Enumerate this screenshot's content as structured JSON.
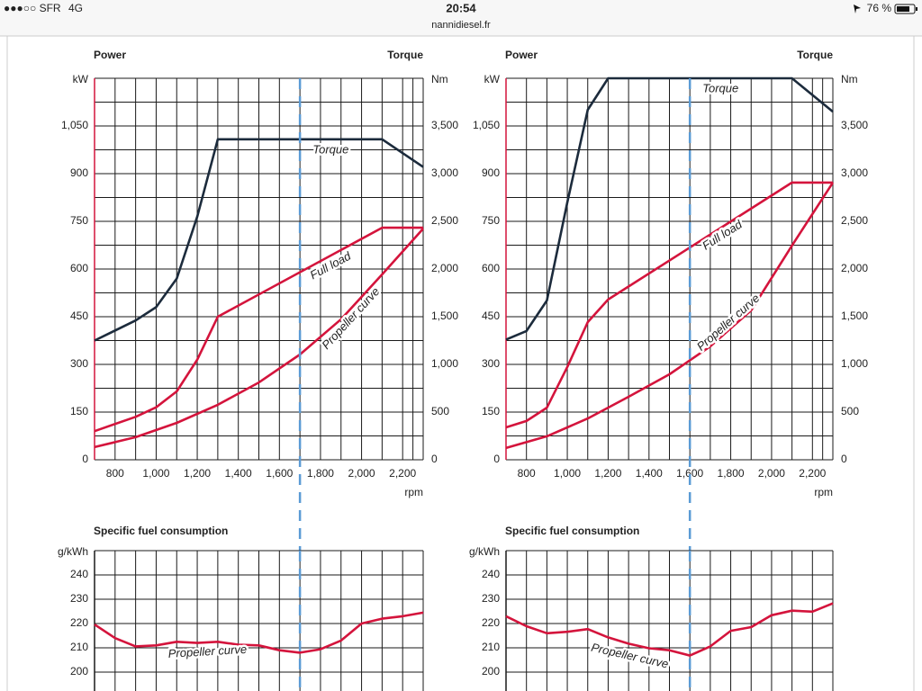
{
  "status_bar": {
    "carrier": "●●●○○ SFR",
    "network": "4G",
    "time": "20:54",
    "battery": "76 %"
  },
  "url": "nannidiesel.fr",
  "chart_data": [
    {
      "type": "line",
      "title": "Power",
      "y2_label": "Torque",
      "y_unit": "kW",
      "y2_unit": "Nm",
      "x_unit": "rpm",
      "xlim": [
        700,
        2300
      ],
      "xticks": [
        800,
        {
          "value": 1000,
          "label": "1,000"
        },
        {
          "value": 1200,
          "label": "1,200"
        },
        {
          "value": 1400,
          "label": "1,400"
        },
        {
          "value": 1600,
          "label": "1,600"
        },
        {
          "value": 1800,
          "label": "1,800"
        },
        {
          "value": 2000,
          "label": "2,000"
        },
        {
          "value": 2200,
          "label": "2,200"
        }
      ],
      "ylim": [
        0,
        1200
      ],
      "yticks": [
        0,
        150,
        300,
        450,
        600,
        750,
        900,
        {
          "value": 1050,
          "label": "1,050"
        }
      ],
      "y2lim": [
        0,
        4000
      ],
      "y2ticks": [
        0,
        500,
        {
          "value": 1000,
          "label": "1,000"
        },
        {
          "value": 1500,
          "label": "1,500"
        },
        {
          "value": 2000,
          "label": "2,000"
        },
        {
          "value": 2500,
          "label": "2,500"
        },
        {
          "value": 3000,
          "label": "3,000"
        },
        {
          "value": 3500,
          "label": "3,500"
        }
      ],
      "minor_grid": true,
      "reference_x": 1700,
      "series": [
        {
          "name": "Torque",
          "color": "#1c2b3c",
          "axis": "y2",
          "x": [
            700,
            900,
            1000,
            1100,
            1200,
            1300,
            2100,
            2300
          ],
          "values": [
            1250,
            1460,
            1600,
            1900,
            2550,
            3360,
            3360,
            3070
          ]
        },
        {
          "name": "Full load",
          "color": "#d4143c",
          "x": [
            700,
            900,
            1000,
            1100,
            1200,
            1300,
            2100,
            2300
          ],
          "values": [
            90,
            135,
            165,
            215,
            315,
            450,
            730,
            730
          ]
        },
        {
          "name": "Propeller curve",
          "color": "#d4143c",
          "x": [
            700,
            900,
            1100,
            1300,
            1500,
            1700,
            1900,
            2100,
            2300
          ],
          "values": [
            40,
            71,
            116,
            173,
            243,
            331,
            442,
            583,
            727
          ]
        }
      ]
    },
    {
      "type": "line",
      "title": "Power",
      "y2_label": "Torque",
      "y_unit": "kW",
      "y2_unit": "Nm",
      "x_unit": "rpm",
      "xlim": [
        700,
        2300
      ],
      "xticks": [
        800,
        {
          "value": 1000,
          "label": "1,000"
        },
        {
          "value": 1200,
          "label": "1,200"
        },
        {
          "value": 1400,
          "label": "1,400"
        },
        {
          "value": 1600,
          "label": "1,600"
        },
        {
          "value": 1800,
          "label": "1,800"
        },
        {
          "value": 2000,
          "label": "2,000"
        },
        {
          "value": 2200,
          "label": "2,200"
        }
      ],
      "ylim": [
        0,
        1200
      ],
      "yticks": [
        0,
        150,
        300,
        450,
        600,
        750,
        900,
        {
          "value": 1050,
          "label": "1,050"
        }
      ],
      "y2lim": [
        0,
        4000
      ],
      "y2ticks": [
        0,
        500,
        {
          "value": 1000,
          "label": "1,000"
        },
        {
          "value": 1500,
          "label": "1,500"
        },
        {
          "value": 2000,
          "label": "2,000"
        },
        {
          "value": 2500,
          "label": "2,500"
        },
        {
          "value": 3000,
          "label": "3,000"
        },
        {
          "value": 3500,
          "label": "3,500"
        }
      ],
      "minor_grid": true,
      "reference_x": 1600,
      "series": [
        {
          "name": "Torque",
          "color": "#1c2b3c",
          "axis": "y2",
          "x": [
            700,
            800,
            900,
            1000,
            1100,
            1200,
            2100,
            2300
          ],
          "values": [
            1260,
            1350,
            1670,
            2700,
            3670,
            4000,
            4000,
            3650
          ]
        },
        {
          "name": "Full load",
          "color": "#d4143c",
          "x": [
            700,
            800,
            900,
            1000,
            1100,
            1200,
            2100,
            2300
          ],
          "values": [
            102,
            122,
            164,
            292,
            433,
            504,
            872,
            872
          ]
        },
        {
          "name": "Propeller curve",
          "color": "#d4143c",
          "x": [
            700,
            900,
            1100,
            1300,
            1500,
            1700,
            1900,
            2100,
            2300
          ],
          "values": [
            37,
            74,
            130,
            198,
            269,
            357,
            470,
            674,
            872
          ]
        }
      ]
    },
    {
      "type": "line",
      "title": "Specific fuel consumption",
      "y_unit": "g/kWh",
      "xlim": [
        700,
        2300
      ],
      "ylim": [
        190,
        250
      ],
      "yticks": [
        200,
        210,
        220,
        230,
        240
      ],
      "minor_grid": false,
      "reference_x": 1700,
      "series": [
        {
          "name": "Propeller curve",
          "color": "#d4143c",
          "x": [
            700,
            800,
            900,
            1000,
            1100,
            1200,
            1300,
            1400,
            1500,
            1600,
            1700,
            1800,
            1900,
            2000,
            2100,
            2200,
            2300
          ],
          "values": [
            219.6,
            214,
            210.6,
            211,
            212.5,
            212,
            212.5,
            211.3,
            211,
            209,
            208,
            209.4,
            213,
            220,
            222,
            223,
            224.5
          ]
        }
      ]
    },
    {
      "type": "line",
      "title": "Specific fuel consumption",
      "y_unit": "g/kWh",
      "xlim": [
        700,
        2300
      ],
      "ylim": [
        190,
        250
      ],
      "yticks": [
        200,
        210,
        220,
        230,
        240
      ],
      "minor_grid": false,
      "reference_x": 1600,
      "series": [
        {
          "name": "Propeller curve",
          "color": "#d4143c",
          "x": [
            700,
            800,
            900,
            1000,
            1100,
            1200,
            1300,
            1400,
            1500,
            1600,
            1700,
            1800,
            1900,
            2000,
            2100,
            2200,
            2300
          ],
          "values": [
            223,
            218.9,
            216,
            216.6,
            217.7,
            214.3,
            211.7,
            209.8,
            209,
            206.8,
            210.6,
            217,
            218.5,
            223.4,
            225.3,
            224.9,
            228.3
          ]
        }
      ]
    }
  ]
}
